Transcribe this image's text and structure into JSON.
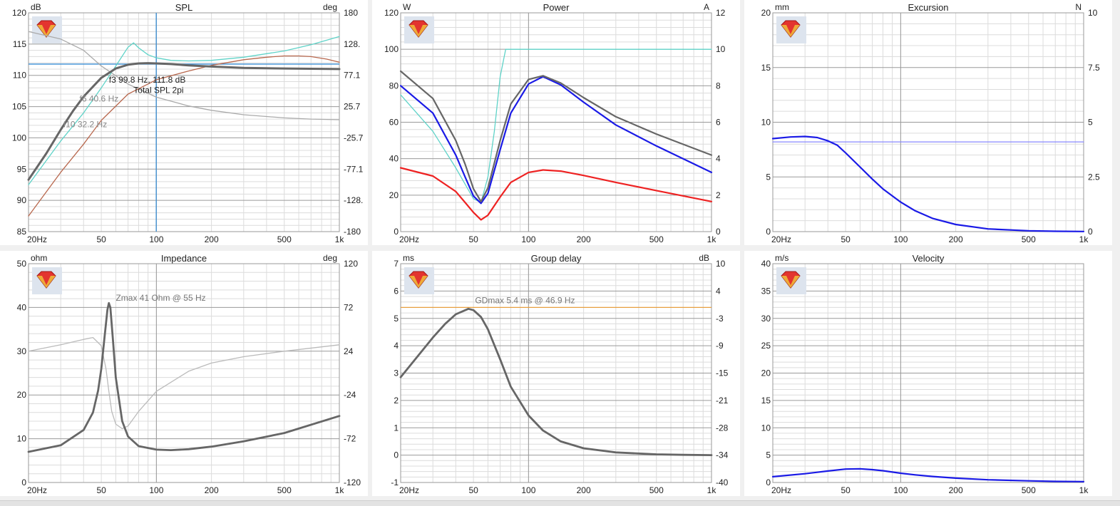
{
  "logo_icon": "red-gem-icon",
  "chart_data": [
    {
      "id": "spl",
      "type": "line",
      "title": "SPL",
      "y_unit": "dB",
      "y2_unit": "deg",
      "x_scale": "log",
      "xlim": [
        20,
        1000
      ],
      "x_ticks": [
        20,
        50,
        100,
        200,
        500,
        1000
      ],
      "x_tick_labels": [
        "20Hz",
        "50",
        "100",
        "200",
        "500",
        "1k"
      ],
      "ylim": [
        85,
        120
      ],
      "y_ticks": [
        85,
        90,
        95,
        100,
        105,
        110,
        115,
        120
      ],
      "y_tick_labels": [
        "85",
        "90",
        "95",
        "100",
        "105",
        "110",
        "115",
        "120"
      ],
      "y2lim": [
        -180,
        180
      ],
      "y2_tick_labels": [
        "180",
        "128.",
        "77.1",
        "25.7",
        "-25.7",
        "-77.1",
        "-128.",
        "-180"
      ],
      "cursor_x": 99.8,
      "hline_y": 111.8,
      "annotations": [
        {
          "text": "f3  99.8 Hz, 111.8 dB",
          "x": 55,
          "y": 108.8,
          "color": "#222222"
        },
        {
          "text": "Total SPL 2pi",
          "x": 75,
          "y": 107.2,
          "color": "#222222"
        },
        {
          "text": "f6 40.6 Hz",
          "x": 38,
          "y": 105.8,
          "color": "#888888"
        },
        {
          "text": "f10 32.2 Hz",
          "x": 31,
          "y": 101.7,
          "color": "#888888"
        }
      ],
      "series": [
        {
          "color": "#aaaaaa",
          "width": 1.3,
          "axis": "y",
          "x": [
            20,
            30,
            40,
            50,
            70,
            100,
            150,
            200,
            300,
            500,
            700,
            1000
          ],
          "values": [
            117,
            115.8,
            114,
            111.5,
            108.6,
            106.5,
            105.1,
            104.4,
            103.7,
            103.2,
            103.0,
            102.9
          ]
        },
        {
          "color": "#5fd3c8",
          "width": 1.3,
          "axis": "y",
          "x": [
            20,
            30,
            40,
            50,
            60,
            70,
            75,
            80,
            90,
            100,
            120,
            150,
            200,
            300,
            500,
            700,
            1000
          ],
          "values": [
            92.5,
            99.5,
            104,
            108,
            111.5,
            114.5,
            115.2,
            114.4,
            113.3,
            112.8,
            112.4,
            112.3,
            112.4,
            112.9,
            113.9,
            114.9,
            116.2
          ]
        },
        {
          "color": "#b8684e",
          "width": 1.3,
          "axis": "y",
          "x": [
            20,
            30,
            40,
            50,
            70,
            100,
            150,
            200,
            300,
            400,
            500,
            600,
            700,
            850,
            1000
          ],
          "values": [
            87.5,
            94.5,
            99,
            102.8,
            107,
            109.3,
            110.7,
            111.6,
            112.5,
            112.9,
            113.1,
            113.1,
            113.0,
            112.6,
            112.1
          ]
        },
        {
          "color": "#666666",
          "width": 3,
          "axis": "y",
          "x": [
            20,
            25,
            30,
            35,
            40,
            50,
            60,
            70,
            80,
            90,
            100,
            120,
            150,
            200,
            300,
            500,
            700,
            1000
          ],
          "values": [
            93.3,
            97.5,
            101.3,
            104.3,
            106.6,
            109.6,
            111.1,
            111.7,
            111.9,
            111.95,
            111.9,
            111.8,
            111.6,
            111.4,
            111.2,
            111.1,
            111.05,
            111.0
          ]
        }
      ]
    },
    {
      "id": "power",
      "type": "line",
      "title": "Power",
      "y_unit": "W",
      "y2_unit": "A",
      "x_scale": "log",
      "xlim": [
        20,
        1000
      ],
      "x_ticks": [
        20,
        50,
        100,
        200,
        500,
        1000
      ],
      "x_tick_labels": [
        "20Hz",
        "50",
        "100",
        "200",
        "500",
        "1k"
      ],
      "ylim": [
        0,
        120
      ],
      "y_ticks": [
        0,
        20,
        40,
        60,
        80,
        100,
        120
      ],
      "y_tick_labels": [
        "0",
        "20",
        "40",
        "60",
        "80",
        "100",
        "120"
      ],
      "y2lim": [
        0,
        12
      ],
      "y2_tick_labels": [
        "12",
        "10",
        "8",
        "6",
        "4",
        "2",
        "0"
      ],
      "series": [
        {
          "color": "#5fd3c8",
          "width": 1.3,
          "axis": "y",
          "x": [
            20,
            30,
            40,
            50,
            55,
            60,
            65,
            70,
            75,
            1000
          ],
          "values": [
            75,
            55,
            35,
            18,
            16,
            30,
            55,
            85,
            100,
            100
          ]
        },
        {
          "color": "#ee2222",
          "width": 2.2,
          "axis": "y",
          "x": [
            20,
            30,
            40,
            45,
            50,
            55,
            60,
            70,
            80,
            100,
            120,
            150,
            200,
            300,
            500,
            1000
          ],
          "values": [
            35,
            30.5,
            22,
            16,
            10.5,
            6.5,
            9,
            19,
            27,
            32.5,
            33.8,
            33.2,
            30.8,
            27,
            22.5,
            16.5
          ]
        },
        {
          "color": "#1a1ae6",
          "width": 2.2,
          "axis": "y",
          "x": [
            20,
            30,
            40,
            45,
            50,
            55,
            60,
            70,
            80,
            100,
            120,
            150,
            200,
            300,
            500,
            1000
          ],
          "values": [
            80,
            65,
            42,
            30,
            19.5,
            15.5,
            21,
            45,
            65,
            81,
            85,
            80.5,
            71,
            58.5,
            47,
            32.5
          ]
        },
        {
          "color": "#666666",
          "width": 2.2,
          "axis": "y",
          "x": [
            20,
            30,
            40,
            45,
            50,
            55,
            60,
            70,
            80,
            100,
            120,
            150,
            200,
            300,
            500,
            1000
          ],
          "values": [
            88,
            73,
            50,
            37,
            23.5,
            16.5,
            24,
            50,
            70,
            83.5,
            85.5,
            81.5,
            73.5,
            63,
            53.5,
            42
          ]
        }
      ]
    },
    {
      "id": "excursion",
      "type": "line",
      "title": "Excursion",
      "y_unit": "mm",
      "y2_unit": "N",
      "x_scale": "log",
      "xlim": [
        20,
        1000
      ],
      "x_ticks": [
        20,
        50,
        100,
        200,
        500,
        1000
      ],
      "x_tick_labels": [
        "20Hz",
        "50",
        "100",
        "200",
        "500",
        "1k"
      ],
      "ylim": [
        0,
        20
      ],
      "y_ticks": [
        0,
        5,
        10,
        15,
        20
      ],
      "y_tick_labels": [
        "0",
        "5",
        "10",
        "15",
        "20"
      ],
      "y2lim": [
        0,
        10
      ],
      "y2_tick_labels": [
        "10",
        "7.5",
        "5",
        "2.5",
        "0"
      ],
      "series": [
        {
          "color": "#8888ff",
          "width": 1.3,
          "axis": "y",
          "x": [
            20,
            1000
          ],
          "values": [
            8.2,
            8.2
          ]
        },
        {
          "color": "#1a1ae6",
          "width": 2.2,
          "axis": "y",
          "x": [
            20,
            25,
            30,
            35,
            40,
            45,
            50,
            60,
            70,
            80,
            100,
            120,
            150,
            200,
            300,
            500,
            700,
            1000
          ],
          "values": [
            8.5,
            8.65,
            8.7,
            8.6,
            8.3,
            7.9,
            7.2,
            5.9,
            4.8,
            3.9,
            2.7,
            1.9,
            1.2,
            0.65,
            0.25,
            0.08,
            0.03,
            0.01
          ]
        }
      ]
    },
    {
      "id": "impedance",
      "type": "line",
      "title": "Impedance",
      "y_unit": "ohm",
      "y2_unit": "deg",
      "x_scale": "log",
      "xlim": [
        20,
        1000
      ],
      "x_ticks": [
        20,
        50,
        100,
        200,
        500,
        1000
      ],
      "x_tick_labels": [
        "20Hz",
        "50",
        "100",
        "200",
        "500",
        "1k"
      ],
      "ylim": [
        0,
        50
      ],
      "y_ticks": [
        0,
        10,
        20,
        30,
        40,
        50
      ],
      "y_tick_labels": [
        "0",
        "10",
        "20",
        "30",
        "40",
        "50"
      ],
      "y2lim": [
        -120,
        120
      ],
      "y2_tick_labels": [
        "120",
        "72",
        "24",
        "-24",
        "-72",
        "-120"
      ],
      "annotations": [
        {
          "text": "Zmax 41 Ohm @ 55 Hz",
          "x": 60,
          "y": 41.5,
          "color": "#777777"
        }
      ],
      "series": [
        {
          "color": "#bbbbbb",
          "width": 1.3,
          "axis": "y2",
          "x": [
            20,
            30,
            40,
            45,
            50,
            53,
            55,
            57,
            60,
            65,
            70,
            80,
            100,
            150,
            200,
            300,
            500,
            1000
          ],
          "values": [
            24,
            31,
            37,
            39,
            30,
            5,
            -20,
            -42,
            -56,
            -61,
            -58,
            -42,
            -20,
            2,
            11,
            18,
            24,
            31
          ]
        },
        {
          "color": "#666666",
          "width": 2.8,
          "axis": "y",
          "x": [
            20,
            30,
            40,
            45,
            48,
            50,
            52,
            54,
            55,
            56,
            58,
            60,
            65,
            70,
            80,
            100,
            120,
            150,
            200,
            300,
            500,
            1000
          ],
          "values": [
            7,
            8.5,
            12,
            16,
            21,
            26,
            33,
            39.5,
            41,
            40,
            32,
            24,
            14,
            10.5,
            8.3,
            7.5,
            7.4,
            7.6,
            8.2,
            9.4,
            11.3,
            15.2
          ]
        }
      ]
    },
    {
      "id": "groupdelay",
      "type": "line",
      "title": "Group delay",
      "y_unit": "ms",
      "y2_unit": "dB",
      "x_scale": "log",
      "xlim": [
        20,
        1000
      ],
      "x_ticks": [
        20,
        50,
        100,
        200,
        500,
        1000
      ],
      "x_tick_labels": [
        "20Hz",
        "50",
        "100",
        "200",
        "500",
        "1k"
      ],
      "ylim": [
        -1,
        7
      ],
      "y_ticks": [
        -1,
        0,
        1,
        2,
        3,
        4,
        5,
        6,
        7
      ],
      "y_tick_labels": [
        "-1",
        "0",
        "1",
        "2",
        "3",
        "4",
        "5",
        "6",
        "7"
      ],
      "y2lim": [
        -40,
        10
      ],
      "y2_tick_labels": [
        "10",
        "4",
        "-3",
        "-9",
        "-15",
        "-21",
        "-28",
        "-34",
        "-40"
      ],
      "hline_y": 5.4,
      "hline_color": "#e8a040",
      "annotations": [
        {
          "text": "GDmax 5.4 ms  @ 46.9 Hz",
          "x": 51,
          "y": 5.55,
          "color": "#777777"
        }
      ],
      "series": [
        {
          "color": "#666666",
          "width": 2.8,
          "axis": "y",
          "x": [
            20,
            25,
            30,
            35,
            40,
            46.9,
            50,
            55,
            60,
            70,
            80,
            100,
            120,
            150,
            200,
            300,
            500,
            700,
            1000
          ],
          "values": [
            2.85,
            3.65,
            4.3,
            4.8,
            5.15,
            5.35,
            5.3,
            5.05,
            4.6,
            3.5,
            2.5,
            1.45,
            0.9,
            0.5,
            0.25,
            0.1,
            0.03,
            0.01,
            0.0
          ]
        }
      ]
    },
    {
      "id": "velocity",
      "type": "line",
      "title": "Velocity",
      "y_unit": "m/s",
      "x_scale": "log",
      "xlim": [
        20,
        1000
      ],
      "x_ticks": [
        20,
        50,
        100,
        200,
        500,
        1000
      ],
      "x_tick_labels": [
        "20Hz",
        "50",
        "100",
        "200",
        "500",
        "1k"
      ],
      "ylim": [
        0,
        40
      ],
      "y_ticks": [
        0,
        5,
        10,
        15,
        20,
        25,
        30,
        35,
        40
      ],
      "y_tick_labels": [
        "0",
        "5",
        "10",
        "15",
        "20",
        "25",
        "30",
        "35",
        "40"
      ],
      "series": [
        {
          "color": "#1a1ae6",
          "width": 2.2,
          "axis": "y",
          "x": [
            20,
            30,
            40,
            50,
            60,
            70,
            80,
            100,
            120,
            150,
            200,
            300,
            500,
            700,
            1000
          ],
          "values": [
            1.05,
            1.6,
            2.1,
            2.45,
            2.5,
            2.35,
            2.15,
            1.7,
            1.4,
            1.1,
            0.8,
            0.5,
            0.3,
            0.2,
            0.15
          ]
        }
      ]
    }
  ]
}
